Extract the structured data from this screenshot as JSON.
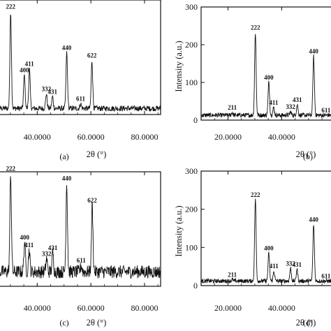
{
  "chart_data": [
    {
      "panel_label": "(a)",
      "type": "line",
      "xlabel": "2θ (°)",
      "ylabel": "",
      "xlim": [
        23,
        86
      ],
      "ylim": [
        0,
        300
      ],
      "xticks": [
        40,
        60,
        80
      ],
      "xtick_labels": [
        "40.0000",
        "60.0000",
        "80.0000"
      ],
      "yticks": [],
      "ytick_labels": [],
      "baseline": 16,
      "peaks": [
        {
          "label": "222",
          "x": 30.1,
          "y": 270
        },
        {
          "label": "400",
          "x": 35.2,
          "y": 103
        },
        {
          "label": "411",
          "x": 37.1,
          "y": 120
        },
        {
          "label": "332",
          "x": 43.4,
          "y": 54
        },
        {
          "label": "431",
          "x": 45.7,
          "y": 47
        },
        {
          "label": "440",
          "x": 51.0,
          "y": 162
        },
        {
          "label": "611",
          "x": 56.2,
          "y": 28
        },
        {
          "label": "622",
          "x": 60.4,
          "y": 142
        }
      ]
    },
    {
      "panel_label": "(b)",
      "type": "line",
      "xlabel": "2θ (°)",
      "ylabel": "Intensity (a.u.)",
      "xlim": [
        10,
        62
      ],
      "ylim": [
        0,
        300
      ],
      "xticks": [
        20,
        40
      ],
      "xtick_labels": [
        "20.0000",
        "40.0000"
      ],
      "yticks": [
        0,
        100,
        200,
        300
      ],
      "ytick_labels": [
        "0",
        "100",
        "200",
        "300"
      ],
      "baseline": 13,
      "peaks": [
        {
          "label": "211",
          "x": 21.6,
          "y": 20
        },
        {
          "label": "222",
          "x": 30.2,
          "y": 232
        },
        {
          "label": "400",
          "x": 35.2,
          "y": 100
        },
        {
          "label": "411",
          "x": 37.0,
          "y": 33
        },
        {
          "label": "332",
          "x": 43.3,
          "y": 22
        },
        {
          "label": "431",
          "x": 45.8,
          "y": 41
        },
        {
          "label": "440",
          "x": 51.9,
          "y": 169
        },
        {
          "label": "611",
          "x": 56.5,
          "y": 13
        }
      ]
    },
    {
      "panel_label": "(c)",
      "type": "line",
      "xlabel": "2θ (°)",
      "ylabel": "",
      "xlim": [
        23,
        86
      ],
      "ylim": [
        0,
        300
      ],
      "xticks": [
        40,
        60,
        80
      ],
      "xtick_labels": [
        "40.0000",
        "60.0000",
        "80.0000"
      ],
      "yticks": [],
      "ytick_labels": [],
      "baseline": 38,
      "peaks": [
        {
          "label": "222",
          "x": 30.1,
          "y": 295
        },
        {
          "label": "400",
          "x": 35.3,
          "y": 115
        },
        {
          "label": "411",
          "x": 37.0,
          "y": 95
        },
        {
          "label": "332",
          "x": 43.5,
          "y": 72
        },
        {
          "label": "431",
          "x": 45.8,
          "y": 88
        },
        {
          "label": "440",
          "x": 51.0,
          "y": 270
        },
        {
          "label": "611",
          "x": 56.4,
          "y": 55
        },
        {
          "label": "622",
          "x": 60.5,
          "y": 212
        }
      ]
    },
    {
      "panel_label": "(d)",
      "type": "line",
      "xlabel": "2θ (°)",
      "ylabel": "Intensity (a.u.)",
      "xlim": [
        10,
        62
      ],
      "ylim": [
        0,
        300
      ],
      "xticks": [
        20,
        40
      ],
      "xtick_labels": [
        "20.0000",
        "40.0000"
      ],
      "yticks": [
        0,
        100,
        200,
        300
      ],
      "ytick_labels": [
        "0",
        "100",
        "200",
        "300"
      ],
      "baseline": 12,
      "peaks": [
        {
          "label": "211",
          "x": 21.6,
          "y": 16
        },
        {
          "label": "222",
          "x": 30.2,
          "y": 225
        },
        {
          "label": "400",
          "x": 35.2,
          "y": 85
        },
        {
          "label": "411",
          "x": 37.1,
          "y": 38
        },
        {
          "label": "332",
          "x": 43.3,
          "y": 45
        },
        {
          "label": "431",
          "x": 45.7,
          "y": 42
        },
        {
          "label": "440",
          "x": 51.9,
          "y": 160
        },
        {
          "label": "611",
          "x": 56.5,
          "y": 12
        }
      ]
    }
  ]
}
